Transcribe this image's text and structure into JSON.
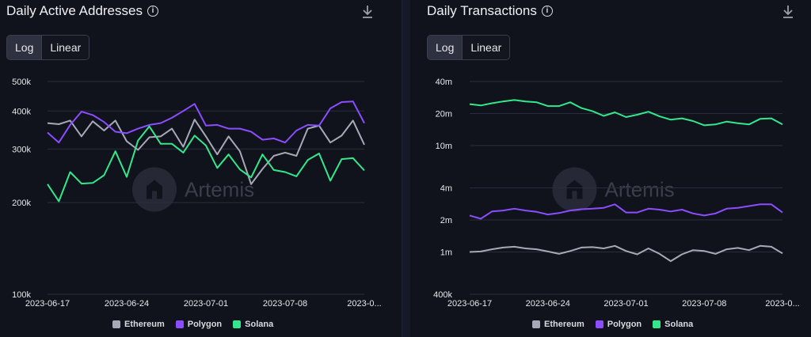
{
  "colors": {
    "ethereum": "#a8a9b8",
    "polygon": "#8b4dff",
    "solana": "#32e88c",
    "grid": "#2a2d3c"
  },
  "watermark": "Artemis",
  "left": {
    "title": "Daily Active Addresses",
    "toggle": {
      "log": "Log",
      "linear": "Linear"
    },
    "legend": [
      "Ethereum",
      "Polygon",
      "Solana"
    ]
  },
  "right": {
    "title": "Daily Transactions",
    "toggle": {
      "log": "Log",
      "linear": "Linear"
    },
    "legend": [
      "Ethereum",
      "Polygon",
      "Solana"
    ]
  },
  "chart_data": [
    {
      "type": "line",
      "title": "Daily Active Addresses",
      "scale": "log",
      "ylim": [
        100000,
        500000
      ],
      "yticks": [
        100000,
        200000,
        300000,
        400000,
        500000
      ],
      "ytick_labels": [
        "100k",
        "200k",
        "300k",
        "400k",
        "500k"
      ],
      "xtick_labels": [
        "2023-06-17",
        "2023-06-24",
        "2023-07-01",
        "2023-07-08",
        "2023-0..."
      ],
      "xtick_index": [
        0,
        7,
        14,
        21,
        28
      ],
      "series": [
        {
          "name": "Ethereum",
          "values": [
            365000,
            362000,
            372000,
            330000,
            370000,
            345000,
            372000,
            318000,
            298000,
            328000,
            330000,
            350000,
            305000,
            375000,
            330000,
            288000,
            330000,
            295000,
            230000,
            258000,
            285000,
            292000,
            285000,
            350000,
            358000,
            315000,
            332000,
            372000,
            310000
          ]
        },
        {
          "name": "Polygon",
          "values": [
            340000,
            315000,
            360000,
            398000,
            388000,
            368000,
            342000,
            338000,
            350000,
            360000,
            365000,
            380000,
            400000,
            422000,
            358000,
            360000,
            350000,
            350000,
            342000,
            322000,
            325000,
            315000,
            345000,
            360000,
            358000,
            408000,
            428000,
            430000,
            365000
          ]
        },
        {
          "name": "Solana",
          "values": [
            230000,
            202000,
            252000,
            231000,
            232000,
            246000,
            295000,
            243000,
            320000,
            356000,
            312000,
            312000,
            292000,
            332000,
            308000,
            260000,
            288000,
            257000,
            242000,
            288000,
            256000,
            252000,
            244000,
            276000,
            290000,
            236000,
            278000,
            280000,
            255000
          ]
        }
      ]
    },
    {
      "type": "line",
      "title": "Daily Transactions",
      "scale": "log",
      "ylim": [
        400000,
        40000000
      ],
      "yticks": [
        400000,
        1000000,
        2000000,
        4000000,
        10000000,
        20000000,
        40000000
      ],
      "ytick_labels": [
        "400k",
        "1m",
        "2m",
        "4m",
        "10m",
        "20m",
        "40m"
      ],
      "xtick_labels": [
        "2023-06-17",
        "2023-06-24",
        "2023-07-01",
        "2023-07-08",
        "2023-0..."
      ],
      "xtick_index": [
        0,
        7,
        14,
        21,
        28
      ],
      "series": [
        {
          "name": "Ethereum",
          "values": [
            1000000,
            1010000,
            1060000,
            1100000,
            1120000,
            1080000,
            1060000,
            1010000,
            960000,
            1020000,
            1100000,
            1110000,
            1080000,
            1140000,
            1020000,
            950000,
            1080000,
            960000,
            820000,
            950000,
            1040000,
            1020000,
            960000,
            1060000,
            1090000,
            1040000,
            1140000,
            1120000,
            970000
          ]
        },
        {
          "name": "Polygon",
          "values": [
            2200000,
            2050000,
            2400000,
            2450000,
            2550000,
            2450000,
            2380000,
            2250000,
            2320000,
            2450000,
            2520000,
            2550000,
            2600000,
            2800000,
            2350000,
            2350000,
            2550000,
            2500000,
            2400000,
            2500000,
            2300000,
            2200000,
            2300000,
            2550000,
            2600000,
            2700000,
            2800000,
            2800000,
            2350000
          ]
        },
        {
          "name": "Solana",
          "values": [
            24500000,
            23800000,
            25000000,
            26000000,
            26800000,
            26000000,
            25500000,
            23500000,
            23500000,
            25500000,
            22500000,
            21000000,
            19000000,
            20500000,
            18500000,
            19500000,
            20800000,
            18800000,
            17500000,
            18000000,
            17000000,
            15500000,
            15800000,
            16800000,
            16200000,
            15800000,
            17800000,
            18000000,
            15800000
          ]
        }
      ]
    }
  ]
}
